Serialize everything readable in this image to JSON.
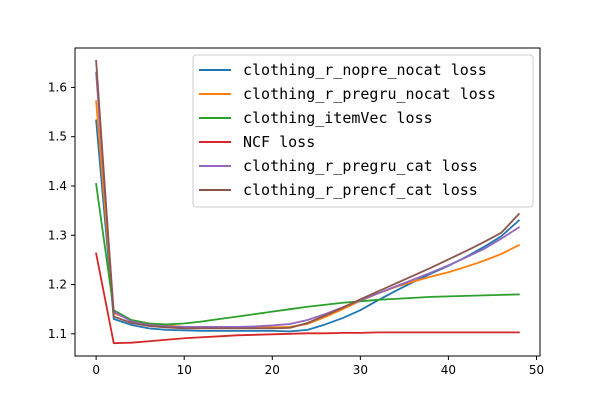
{
  "chart_data": {
    "type": "line",
    "title": "",
    "xlabel": "",
    "ylabel": "",
    "xlim": [
      -2.4,
      50.4
    ],
    "ylim": [
      1.055,
      1.68
    ],
    "xticks": [
      0,
      10,
      20,
      30,
      40,
      50
    ],
    "yticks": [
      1.1,
      1.2,
      1.3,
      1.4,
      1.5,
      1.6
    ],
    "tick_labels_x": [
      "0",
      "10",
      "20",
      "30",
      "40",
      "50"
    ],
    "tick_labels_y": [
      "1.1",
      "1.2",
      "1.3",
      "1.4",
      "1.5",
      "1.6"
    ],
    "grid": false,
    "legend_position": "top-right",
    "x": [
      0,
      2,
      4,
      6,
      8,
      10,
      12,
      14,
      16,
      18,
      20,
      22,
      24,
      26,
      28,
      30,
      32,
      34,
      36,
      38,
      40,
      42,
      44,
      46,
      48
    ],
    "series": [
      {
        "name": "clothing_r_nopre_nocat loss",
        "color": "#1f77b4",
        "values": [
          1.533,
          1.13,
          1.118,
          1.111,
          1.108,
          1.107,
          1.106,
          1.106,
          1.106,
          1.106,
          1.106,
          1.105,
          1.108,
          1.119,
          1.132,
          1.148,
          1.168,
          1.187,
          1.205,
          1.222,
          1.238,
          1.256,
          1.276,
          1.298,
          1.33
        ]
      },
      {
        "name": "clothing_r_pregru_nocat loss",
        "color": "#ff7f0e",
        "values": [
          1.572,
          1.142,
          1.128,
          1.121,
          1.117,
          1.114,
          1.113,
          1.113,
          1.113,
          1.113,
          1.113,
          1.114,
          1.12,
          1.134,
          1.15,
          1.167,
          1.182,
          1.195,
          1.206,
          1.216,
          1.225,
          1.236,
          1.248,
          1.262,
          1.28
        ]
      },
      {
        "name": "clothing_itemVec loss",
        "color": "#2ca02c",
        "values": [
          1.404,
          1.148,
          1.128,
          1.121,
          1.119,
          1.121,
          1.125,
          1.13,
          1.135,
          1.14,
          1.145,
          1.15,
          1.155,
          1.159,
          1.163,
          1.166,
          1.169,
          1.171,
          1.173,
          1.175,
          1.176,
          1.177,
          1.178,
          1.179,
          1.18
        ]
      },
      {
        "name": "NCF loss",
        "color": "#d62728",
        "values": [
          1.263,
          1.081,
          1.082,
          1.085,
          1.088,
          1.091,
          1.093,
          1.095,
          1.097,
          1.098,
          1.099,
          1.1,
          1.101,
          1.101,
          1.102,
          1.102,
          1.103,
          1.103,
          1.103,
          1.103,
          1.103,
          1.103,
          1.103,
          1.103,
          1.103
        ]
      },
      {
        "name": "clothing_r_pregru_cat loss",
        "color": "#9467bd",
        "values": [
          1.63,
          1.145,
          1.125,
          1.118,
          1.115,
          1.114,
          1.114,
          1.114,
          1.114,
          1.115,
          1.117,
          1.12,
          1.128,
          1.14,
          1.154,
          1.168,
          1.182,
          1.196,
          1.21,
          1.224,
          1.239,
          1.255,
          1.272,
          1.293,
          1.316
        ]
      },
      {
        "name": "clothing_r_prencf_cat loss",
        "color": "#8c564b",
        "values": [
          1.654,
          1.135,
          1.122,
          1.116,
          1.113,
          1.111,
          1.111,
          1.111,
          1.111,
          1.111,
          1.111,
          1.112,
          1.122,
          1.137,
          1.153,
          1.17,
          1.186,
          1.202,
          1.218,
          1.234,
          1.251,
          1.268,
          1.286,
          1.305,
          1.343
        ]
      }
    ]
  }
}
